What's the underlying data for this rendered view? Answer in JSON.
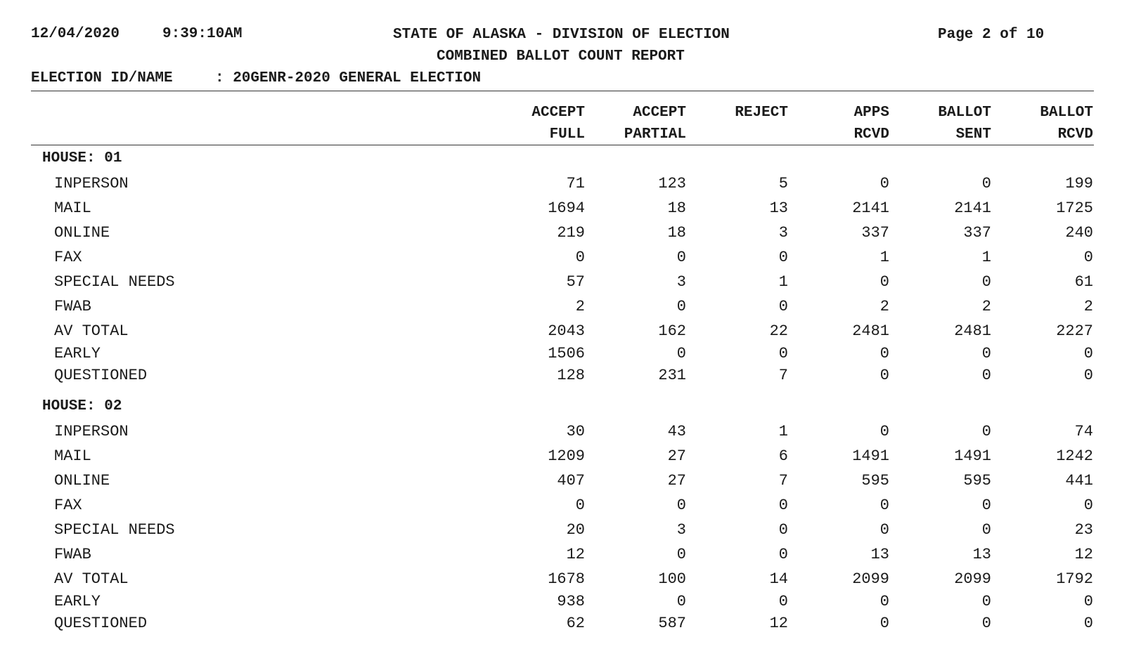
{
  "header": {
    "date": "12/04/2020",
    "time": "9:39:10AM",
    "title": "STATE OF ALASKA - DIVISION OF ELECTION",
    "subtitle": "COMBINED BALLOT COUNT REPORT",
    "page": "Page 2 of 10",
    "election_label": "ELECTION ID/NAME",
    "election_value": ": 20GENR-2020 GENERAL ELECTION"
  },
  "columns": [
    {
      "line1": "ACCEPT",
      "line2": "FULL"
    },
    {
      "line1": "ACCEPT",
      "line2": "PARTIAL"
    },
    {
      "line1": "REJECT",
      "line2": ""
    },
    {
      "line1": "APPS",
      "line2": "RCVD"
    },
    {
      "line1": "BALLOT",
      "line2": "SENT"
    },
    {
      "line1": "BALLOT",
      "line2": "RCVD"
    }
  ],
  "sections": [
    {
      "title": "HOUSE: 01",
      "rows": [
        {
          "label": "INPERSON",
          "values": [
            "71",
            "123",
            "5",
            "0",
            "0",
            "199"
          ]
        },
        {
          "label": "MAIL",
          "values": [
            "1694",
            "18",
            "13",
            "2141",
            "2141",
            "1725"
          ]
        },
        {
          "label": "ONLINE",
          "values": [
            "219",
            "18",
            "3",
            "337",
            "337",
            "240"
          ]
        },
        {
          "label": "FAX",
          "values": [
            "0",
            "0",
            "0",
            "1",
            "1",
            "0"
          ]
        },
        {
          "label": "SPECIAL NEEDS",
          "values": [
            "57",
            "3",
            "1",
            "0",
            "0",
            "61"
          ]
        },
        {
          "label": "FWAB",
          "values": [
            "2",
            "0",
            "0",
            "2",
            "2",
            "2"
          ]
        },
        {
          "label": "AV TOTAL",
          "values": [
            "2043",
            "162",
            "22",
            "2481",
            "2481",
            "2227"
          ]
        },
        {
          "label": "EARLY",
          "values": [
            "1506",
            "0",
            "0",
            "0",
            "0",
            "0"
          ]
        },
        {
          "label": "QUESTIONED",
          "values": [
            "128",
            "231",
            "7",
            "0",
            "0",
            "0"
          ]
        }
      ]
    },
    {
      "title": "HOUSE: 02",
      "rows": [
        {
          "label": "INPERSON",
          "values": [
            "30",
            "43",
            "1",
            "0",
            "0",
            "74"
          ]
        },
        {
          "label": "MAIL",
          "values": [
            "1209",
            "27",
            "6",
            "1491",
            "1491",
            "1242"
          ]
        },
        {
          "label": "ONLINE",
          "values": [
            "407",
            "27",
            "7",
            "595",
            "595",
            "441"
          ]
        },
        {
          "label": "FAX",
          "values": [
            "0",
            "0",
            "0",
            "0",
            "0",
            "0"
          ]
        },
        {
          "label": "SPECIAL NEEDS",
          "values": [
            "20",
            "3",
            "0",
            "0",
            "0",
            "23"
          ]
        },
        {
          "label": "FWAB",
          "values": [
            "12",
            "0",
            "0",
            "13",
            "13",
            "12"
          ]
        },
        {
          "label": "AV TOTAL",
          "values": [
            "1678",
            "100",
            "14",
            "2099",
            "2099",
            "1792"
          ]
        },
        {
          "label": "EARLY",
          "values": [
            "938",
            "0",
            "0",
            "0",
            "0",
            "0"
          ]
        },
        {
          "label": "QUESTIONED",
          "values": [
            "62",
            "587",
            "12",
            "0",
            "0",
            "0"
          ]
        }
      ]
    }
  ]
}
